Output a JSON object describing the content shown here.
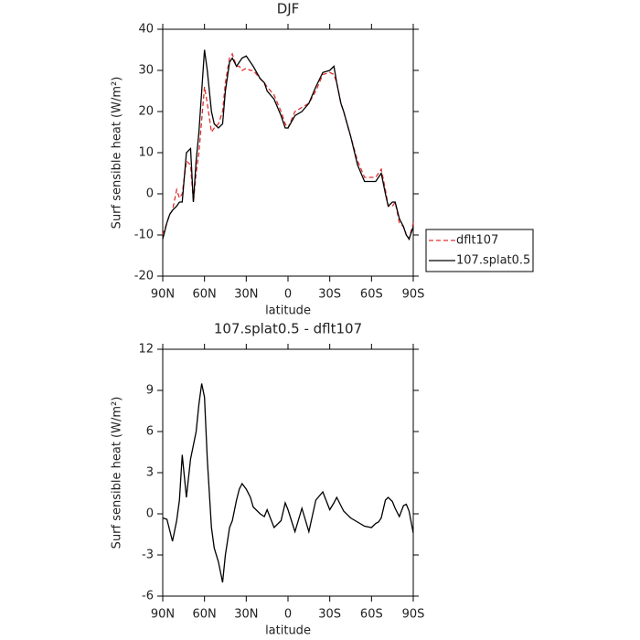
{
  "chart_data": [
    {
      "type": "line",
      "title": "DJF",
      "xlabel": "latitude",
      "ylabel": "Surf sensible heat (W/m²)",
      "x": [
        90,
        87,
        85,
        83,
        80,
        78,
        76,
        73,
        70,
        68,
        66,
        64,
        62,
        60,
        58,
        55,
        53,
        50,
        47,
        45,
        42,
        40,
        37,
        35,
        33,
        30,
        27,
        25,
        20,
        17,
        15,
        10,
        5,
        2,
        0,
        -5,
        -10,
        -15,
        -20,
        -25,
        -30,
        -33,
        -35,
        -38,
        -40,
        -45,
        -50,
        -55,
        -60,
        -63,
        -65,
        -67,
        -70,
        -72,
        -75,
        -77,
        -80,
        -83,
        -85,
        -87,
        -90
      ],
      "series": [
        {
          "name": "dflt107",
          "color": "#e03030",
          "linestyle": "dashed",
          "values": [
            -10,
            -7,
            -5,
            -4,
            1,
            -1,
            0,
            8,
            7,
            -2,
            5,
            10,
            18,
            26,
            22,
            15,
            16,
            17,
            20,
            27,
            33,
            34,
            31,
            31,
            30,
            30.5,
            30,
            30,
            28,
            27,
            26,
            24,
            20,
            17,
            16,
            20,
            21,
            22,
            25,
            29,
            29.5,
            29,
            27,
            22,
            20,
            14,
            8,
            4,
            4,
            4,
            5,
            6,
            1,
            -3,
            -3,
            -2,
            -7,
            -8,
            -10,
            -11,
            -7
          ]
        },
        {
          "name": "107.splat0.5",
          "color": "#000000",
          "linestyle": "solid",
          "values": [
            -11,
            -7,
            -5,
            -4,
            -3,
            -2,
            -2,
            10,
            11,
            -2,
            8,
            15,
            25,
            35,
            30,
            20,
            17,
            16,
            17,
            25,
            32,
            33,
            31,
            32,
            33,
            33.5,
            32,
            31,
            28,
            27,
            25,
            23,
            19,
            16,
            16,
            19,
            20,
            22,
            26,
            29.5,
            30,
            31,
            27,
            22,
            20,
            14,
            7,
            3,
            3,
            3,
            4,
            5,
            0,
            -3,
            -2,
            -2,
            -6,
            -8,
            -10,
            -11,
            -8
          ]
        }
      ],
      "xlim": [
        90,
        -90
      ],
      "xticks": [
        {
          "value": 90,
          "label": "90N"
        },
        {
          "value": 60,
          "label": "60N"
        },
        {
          "value": 30,
          "label": "30N"
        },
        0,
        {
          "value": -30,
          "label": "30S"
        },
        {
          "value": -60,
          "label": "60S"
        },
        {
          "value": -90,
          "label": "90S"
        }
      ],
      "ylim": [
        -20,
        40
      ],
      "yticks": [
        -20,
        -10,
        0,
        10,
        20,
        30,
        40
      ],
      "legend": "right"
    },
    {
      "type": "line",
      "title": "107.splat0.5 - dflt107",
      "xlabel": "latitude",
      "ylabel": "Surf sensible heat (W/m²)",
      "x": [
        90,
        87,
        85,
        83,
        80,
        78,
        76,
        73,
        70,
        68,
        66,
        64,
        62,
        60,
        58,
        55,
        53,
        50,
        47,
        45,
        42,
        40,
        37,
        35,
        33,
        30,
        27,
        25,
        20,
        17,
        15,
        10,
        5,
        2,
        0,
        -5,
        -10,
        -15,
        -20,
        -25,
        -30,
        -33,
        -35,
        -38,
        -40,
        -45,
        -50,
        -55,
        -60,
        -63,
        -65,
        -67,
        -70,
        -72,
        -75,
        -77,
        -80,
        -83,
        -85,
        -87,
        -90
      ],
      "series": [
        {
          "color": "#000000",
          "linestyle": "solid",
          "values": [
            -0.3,
            -0.4,
            -1.2,
            -2,
            -0.5,
            1,
            4.3,
            1.2,
            4,
            5,
            6,
            8,
            9.5,
            8.5,
            4,
            -1,
            -2.5,
            -3.5,
            -5,
            -3,
            -1,
            -0.5,
            1,
            1.8,
            2.2,
            1.8,
            1.2,
            0.5,
            0,
            -0.2,
            0.3,
            -1,
            -0.5,
            0.8,
            0.3,
            -1.3,
            0.4,
            -1.3,
            1,
            1.6,
            0.3,
            0.8,
            1.2,
            0.6,
            0.2,
            -0.3,
            -0.6,
            -0.9,
            -1,
            -0.7,
            -0.6,
            -0.3,
            1,
            1.2,
            0.9,
            0.4,
            -0.2,
            0.6,
            0.7,
            0.2,
            -1.4
          ]
        }
      ],
      "xlim": [
        90,
        -90
      ],
      "xticks": [
        {
          "value": 90,
          "label": "90N"
        },
        {
          "value": 60,
          "label": "60N"
        },
        {
          "value": 30,
          "label": "30N"
        },
        0,
        {
          "value": -30,
          "label": "30S"
        },
        {
          "value": -60,
          "label": "60S"
        },
        {
          "value": -90,
          "label": "90S"
        }
      ],
      "ylim": [
        -6,
        12
      ],
      "yticks": [
        -6,
        -3,
        0,
        3,
        6,
        9,
        12
      ]
    }
  ]
}
